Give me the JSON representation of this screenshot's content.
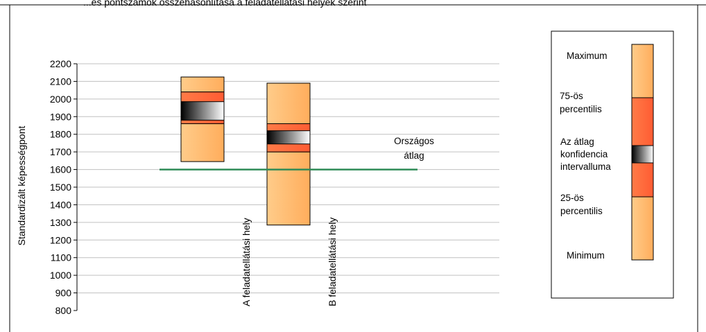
{
  "header_text": "...és pontszámok összehasonlítása a feladatellátási helyek szerint",
  "chart_data": {
    "type": "boxplot",
    "ylabel": "Standardizált képességpont",
    "ylim": [
      800,
      2200
    ],
    "yticks": [
      800,
      900,
      1000,
      1100,
      1200,
      1300,
      1400,
      1500,
      1600,
      1700,
      1800,
      1900,
      2000,
      2100,
      2200
    ],
    "grid": true,
    "categories": [
      "A feladatellátási hely",
      "B feladatellátási hely"
    ],
    "boxes": [
      {
        "name": "A feladatellátási hely",
        "min": 1645,
        "p25": 1860,
        "ci_low": 1880,
        "ci_high": 1985,
        "p75": 2040,
        "max": 2125
      },
      {
        "name": "B feladatellátási hely",
        "min": 1285,
        "p25": 1700,
        "ci_low": 1745,
        "ci_high": 1820,
        "p75": 1860,
        "max": 2090
      }
    ],
    "reference_line": {
      "value": 1600,
      "label_line1": "Országos",
      "label_line2": "átlag",
      "color": "#2e8b57"
    },
    "legend": {
      "position": "right",
      "labels": {
        "max": "Maximum",
        "p75_line1": "75-ös",
        "p75_line2": "percentilis",
        "ci_line1": "Az átlag",
        "ci_line2": "konfidencia",
        "ci_line3": "intervalluma",
        "p25_line1": "25-ös",
        "p25_line2": "percentilis",
        "min": "Minimum"
      }
    },
    "colors": {
      "outer": "#ffc07a",
      "inner": "#ff6a3d",
      "ci_dark": "#000000",
      "ci_light": "#ffffff",
      "grid": "#c0c0c0",
      "stroke": "#000000"
    }
  }
}
